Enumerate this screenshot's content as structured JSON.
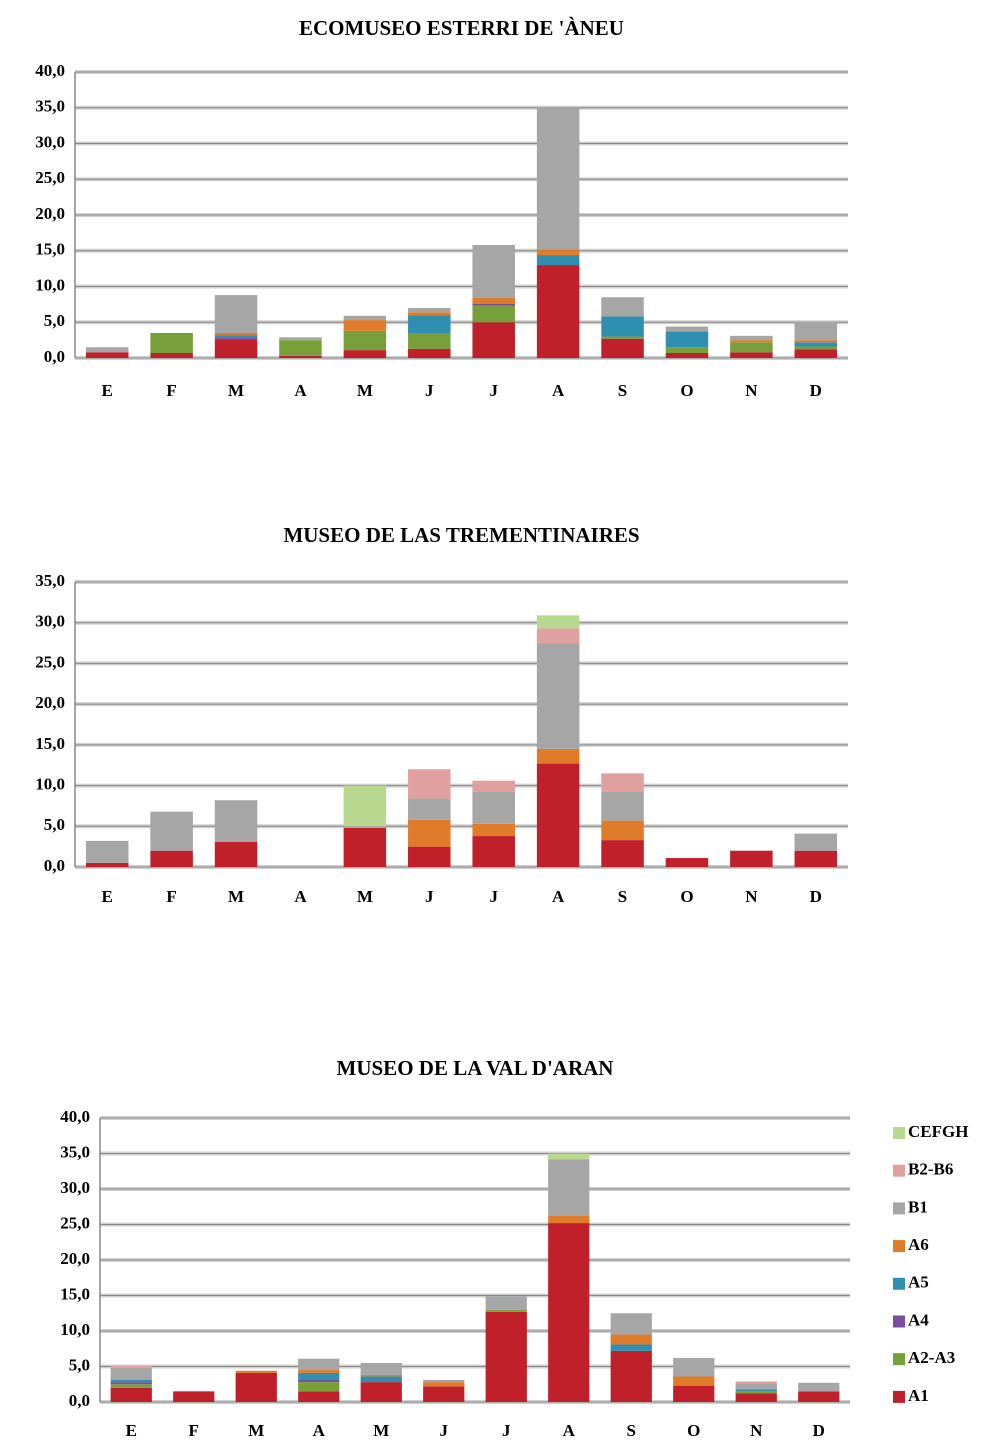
{
  "chart_data": [
    {
      "type": "bar",
      "stacked": true,
      "title": "ECOMUSEO ESTERRI DE 'ÀNEU",
      "categories": [
        "E",
        "F",
        "M",
        "A",
        "M",
        "J",
        "J",
        "A",
        "S",
        "O",
        "N",
        "D"
      ],
      "ylim": [
        0,
        40
      ],
      "yticks": [
        {
          "value": 0,
          "label": "0,0"
        },
        {
          "value": 5,
          "label": "5,0"
        },
        {
          "value": 10,
          "label": "10,0"
        },
        {
          "value": 15,
          "label": "15,0"
        },
        {
          "value": 20,
          "label": "20,0"
        },
        {
          "value": 25,
          "label": "25,0"
        },
        {
          "value": 30,
          "label": "30,0"
        },
        {
          "value": 35,
          "label": "35,0"
        },
        {
          "value": 40,
          "label": "40,0"
        }
      ],
      "grid": true,
      "series": [
        {
          "name": "A1",
          "color": "#c0202a",
          "values": [
            0.8,
            0.7,
            2.6,
            0.3,
            1.1,
            1.3,
            5.0,
            13.0,
            2.7,
            0.7,
            0.8,
            1.2
          ]
        },
        {
          "name": "A2-A3",
          "color": "#77a03a",
          "values": [
            0,
            2.8,
            0,
            2.2,
            2.7,
            2.1,
            2.3,
            0,
            0.3,
            0.8,
            1.4,
            0.4
          ]
        },
        {
          "name": "A4",
          "color": "#7a4fa0",
          "values": [
            0,
            0,
            0.3,
            0,
            0,
            0,
            0.3,
            0,
            0,
            0,
            0,
            0
          ]
        },
        {
          "name": "A5",
          "color": "#2f8fb0",
          "values": [
            0,
            0,
            0.3,
            0,
            0,
            2.6,
            0,
            1.4,
            2.8,
            2.2,
            0,
            0.6
          ]
        },
        {
          "name": "A6",
          "color": "#e07b2a",
          "values": [
            0,
            0,
            0.3,
            0,
            1.5,
            0.4,
            0.8,
            0.8,
            0,
            0,
            0.3,
            0.3
          ]
        },
        {
          "name": "B1",
          "color": "#a6a6a6",
          "values": [
            0.7,
            0,
            5.3,
            0.4,
            0.6,
            0.6,
            7.4,
            19.9,
            2.7,
            0.7,
            0.6,
            2.6
          ]
        },
        {
          "name": "B2-B6",
          "color": "#e0a0a0",
          "values": [
            0,
            0,
            0,
            0,
            0,
            0,
            0,
            0,
            0,
            0,
            0,
            0
          ]
        },
        {
          "name": "CEFGH",
          "color": "#b8d890",
          "values": [
            0,
            0,
            0,
            0,
            0,
            0,
            0,
            0,
            0,
            0,
            0,
            0
          ]
        }
      ]
    },
    {
      "type": "bar",
      "stacked": true,
      "title": "MUSEO DE LAS TREMENTINAIRES",
      "categories": [
        "E",
        "F",
        "M",
        "A",
        "M",
        "J",
        "J",
        "A",
        "S",
        "O",
        "N",
        "D"
      ],
      "ylim": [
        0,
        35
      ],
      "yticks": [
        {
          "value": 0,
          "label": "0,0"
        },
        {
          "value": 5,
          "label": "5,0"
        },
        {
          "value": 10,
          "label": "10,0"
        },
        {
          "value": 15,
          "label": "15,0"
        },
        {
          "value": 20,
          "label": "20,0"
        },
        {
          "value": 25,
          "label": "25,0"
        },
        {
          "value": 30,
          "label": "30,0"
        },
        {
          "value": 35,
          "label": "35,0"
        }
      ],
      "grid": true,
      "series": [
        {
          "name": "A1",
          "color": "#c0202a",
          "values": [
            0.5,
            2.0,
            3.1,
            0,
            4.8,
            2.5,
            3.8,
            12.7,
            3.3,
            1.1,
            2.0,
            2.0
          ]
        },
        {
          "name": "A2-A3",
          "color": "#77a03a",
          "values": [
            0,
            0,
            0,
            0,
            0,
            0,
            0,
            0,
            0,
            0,
            0,
            0
          ]
        },
        {
          "name": "A4",
          "color": "#7a4fa0",
          "values": [
            0,
            0,
            0,
            0,
            0,
            0,
            0,
            0,
            0,
            0,
            0,
            0
          ]
        },
        {
          "name": "A5",
          "color": "#2f8fb0",
          "values": [
            0,
            0,
            0,
            0,
            0,
            0,
            0,
            0,
            0,
            0,
            0,
            0
          ]
        },
        {
          "name": "A6",
          "color": "#e07b2a",
          "values": [
            0,
            0,
            0,
            0,
            0,
            3.3,
            1.5,
            1.8,
            2.4,
            0,
            0,
            0
          ]
        },
        {
          "name": "B1",
          "color": "#a6a6a6",
          "values": [
            2.7,
            4.8,
            5.1,
            0,
            0.2,
            2.6,
            4.0,
            13.0,
            3.6,
            0,
            0,
            2.1
          ]
        },
        {
          "name": "B2-B6",
          "color": "#e0a0a0",
          "values": [
            0,
            0,
            0,
            0,
            0,
            3.6,
            1.3,
            1.8,
            2.2,
            0,
            0,
            0
          ]
        },
        {
          "name": "CEFGH",
          "color": "#b8d890",
          "values": [
            0,
            0,
            0,
            0,
            5.0,
            0,
            0,
            1.6,
            0,
            0,
            0,
            0
          ]
        }
      ]
    },
    {
      "type": "bar",
      "stacked": true,
      "title": "MUSEO DE LA VAL D'ARAN",
      "legend": "right",
      "categories": [
        "E",
        "F",
        "M",
        "A",
        "M",
        "J",
        "J",
        "A",
        "S",
        "O",
        "N",
        "D"
      ],
      "ylim": [
        0,
        40
      ],
      "yticks": [
        {
          "value": 0,
          "label": "0,0"
        },
        {
          "value": 5,
          "label": "5,0"
        },
        {
          "value": 10,
          "label": "10,0"
        },
        {
          "value": 15,
          "label": "15,0"
        },
        {
          "value": 20,
          "label": "20,0"
        },
        {
          "value": 25,
          "label": "25,0"
        },
        {
          "value": 30,
          "label": "30,0"
        },
        {
          "value": 35,
          "label": "35,0"
        },
        {
          "value": 40,
          "label": "40,0"
        }
      ],
      "grid": true,
      "series": [
        {
          "name": "A1",
          "color": "#c0202a",
          "values": [
            2.0,
            1.5,
            4.1,
            1.5,
            2.8,
            2.2,
            12.7,
            25.2,
            7.2,
            2.3,
            1.2,
            1.5
          ]
        },
        {
          "name": "A2-A3",
          "color": "#77a03a",
          "values": [
            0.5,
            0,
            0,
            1.3,
            0,
            0,
            0.3,
            0,
            0,
            0,
            0.3,
            0
          ]
        },
        {
          "name": "A4",
          "color": "#7a4fa0",
          "values": [
            0.3,
            0,
            0,
            0.3,
            0,
            0,
            0,
            0,
            0,
            0,
            0,
            0
          ]
        },
        {
          "name": "A5",
          "color": "#2f8fb0",
          "values": [
            0.3,
            0,
            0,
            1.0,
            0.8,
            0,
            0,
            0,
            0.9,
            0,
            0.3,
            0
          ]
        },
        {
          "name": "A6",
          "color": "#e07b2a",
          "values": [
            0,
            0,
            0.3,
            0.4,
            0.2,
            0.6,
            0,
            1.0,
            1.4,
            1.3,
            0,
            0
          ]
        },
        {
          "name": "B1",
          "color": "#a6a6a6",
          "values": [
            1.7,
            0,
            0,
            1.6,
            1.7,
            0.3,
            1.9,
            8.0,
            3.0,
            2.6,
            0.8,
            1.2
          ]
        },
        {
          "name": "B2-B6",
          "color": "#e0a0a0",
          "values": [
            0.3,
            0,
            0,
            0,
            0,
            0,
            0,
            0,
            0,
            0,
            0.3,
            0
          ]
        },
        {
          "name": "CEFGH",
          "color": "#b8d890",
          "values": [
            0,
            0,
            0,
            0,
            0,
            0,
            0,
            0.8,
            0,
            0,
            0,
            0
          ]
        }
      ]
    }
  ]
}
